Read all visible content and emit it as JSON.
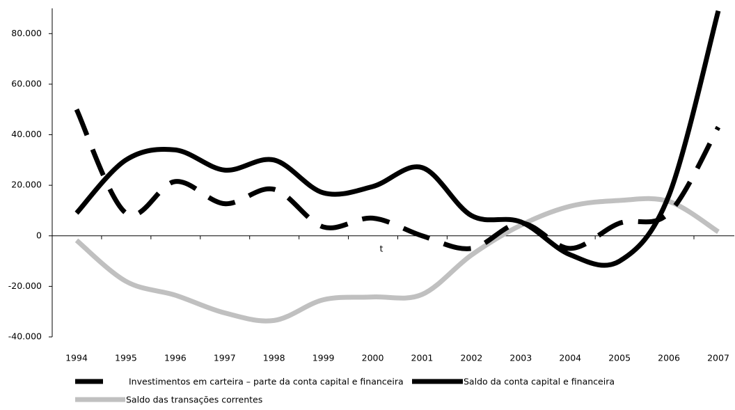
{
  "chart_data": {
    "type": "line",
    "categories": [
      "1994",
      "1995",
      "1996",
      "1997",
      "1998",
      "1999",
      "2000",
      "2001",
      "2002",
      "2003",
      "2004",
      "2005",
      "2006",
      "2007"
    ],
    "series": [
      {
        "name": "Investimentos em carteira – parte da conta capital e financeira",
        "color": "#000000",
        "style": "dashed",
        "values": [
          50000,
          9000,
          21500,
          12700,
          18400,
          3500,
          7000,
          0,
          -5000,
          5000,
          -5000,
          5000,
          9000,
          43000
        ]
      },
      {
        "name": "Saldo da conta capital e financeira",
        "color": "#000000",
        "style": "solid",
        "values": [
          9000,
          30000,
          34000,
          26000,
          30000,
          17000,
          19500,
          27000,
          8000,
          5500,
          -7500,
          -10000,
          16000,
          89000
        ]
      },
      {
        "name": "Saldo das transações correntes",
        "color": "#c0c0c0",
        "style": "solid",
        "values": [
          -1800,
          -18000,
          -23500,
          -30500,
          -33500,
          -25300,
          -24200,
          -23200,
          -7600,
          4200,
          11700,
          14000,
          13600,
          1600
        ]
      }
    ],
    "annotations": [
      "t"
    ],
    "ylim": [
      -40000,
      90000
    ],
    "yticks": [
      {
        "value": -40000,
        "label": "-40.000"
      },
      {
        "value": -20000,
        "label": "-20.000"
      },
      0,
      {
        "value": 20000,
        "label": "20.000"
      },
      {
        "value": 40000,
        "label": "40.000"
      },
      {
        "value": 60000,
        "label": "60.000"
      },
      {
        "value": 80000,
        "label": "80.000"
      }
    ],
    "grid": false
  }
}
